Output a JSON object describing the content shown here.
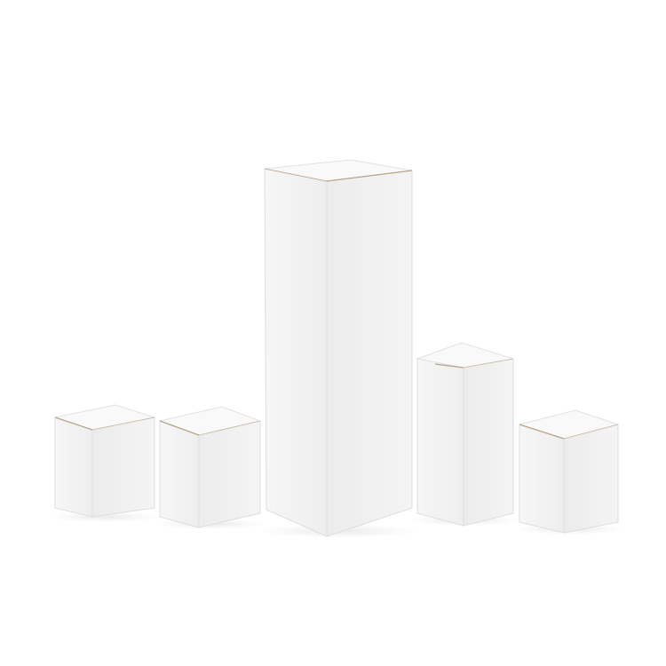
{
  "image": {
    "subject": "white-cardboard-boxes",
    "background_color": "#ffffff",
    "box_count": 5,
    "colors": {
      "front_face": "#f3f3f3",
      "side_face": "#e9e9e9",
      "top_face": "#f8f8f8",
      "edge_shadow": "#d8d8d8",
      "cardboard_edge": "#b7a58c"
    }
  }
}
